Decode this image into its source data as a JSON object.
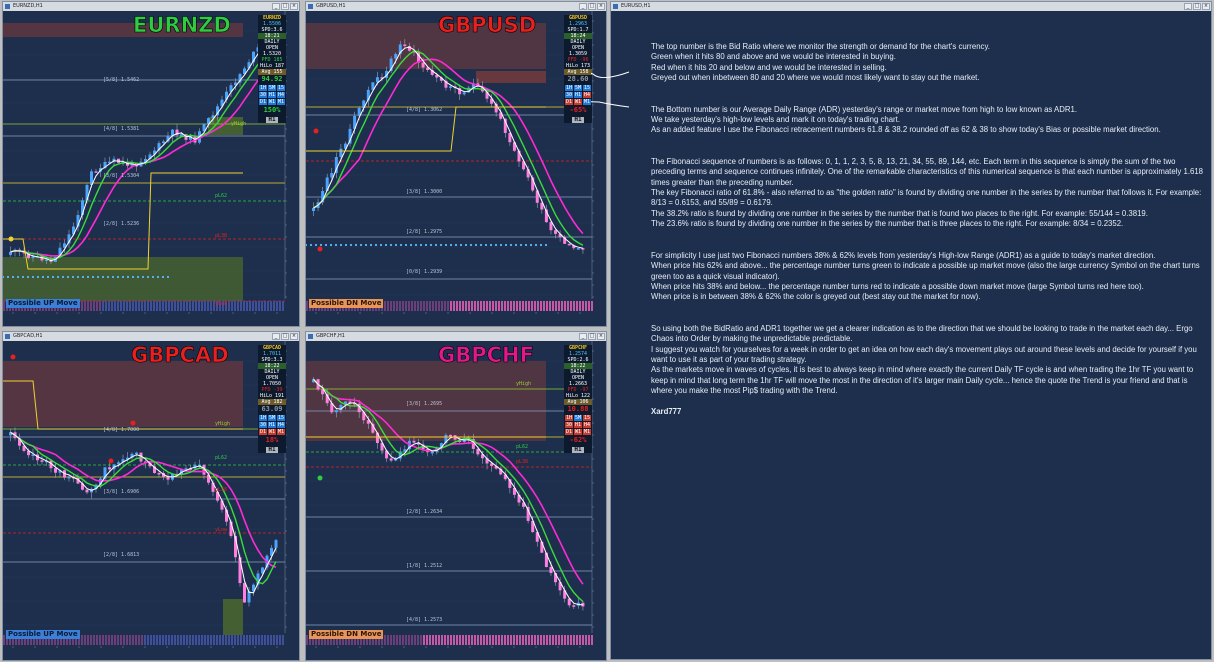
{
  "windows": [
    {
      "id": "eurnzd",
      "title": "EURNZD,H1",
      "big_symbol": "EURNZD",
      "big_symbol_color": "#2ecc40",
      "panel": {
        "symbol": "EURNZD",
        "price": "1.5506",
        "spread": "SPD:3.6",
        "time": "18:21",
        "daily_open_label": "DAILY OPEN",
        "daily_open": "1.5320",
        "pfd": "PFD 185",
        "hilo": "HiLo 187",
        "avg": "Avg 155",
        "bid_ratio": "94.92",
        "bid_ratio_color": "#2ecc40",
        "tf1": [
          "1H",
          "5M",
          "15"
        ],
        "tf2": [
          "30",
          "H1",
          "H4"
        ],
        "tf3": [
          "D1",
          "W1",
          "M1"
        ],
        "adr_pct": "150%",
        "adr_color": "#2ecc40",
        "tf_label": "H1"
      },
      "move_label": "Possible UP Move",
      "move_color": "#3a7fd8",
      "levels": [
        "[4/8] 1.5381",
        "[3/8] 1.5304",
        "[2/8] 1.5236",
        "[5/8] 1.5462",
        "yHigh",
        "pL62",
        "pL38",
        "yLow"
      ]
    },
    {
      "id": "gbpusd",
      "title": "GBPUSD,H1",
      "big_symbol": "GBPUSD",
      "big_symbol_color": "#e8201e",
      "panel": {
        "symbol": "GBPUSD",
        "price": "1.2963",
        "spread": "SPD:1.7",
        "time": "18:24",
        "daily_open_label": "DAILY OPEN",
        "daily_open": "1.3059",
        "pfd": "PFD -96",
        "hilo": "HiLo 173",
        "avg": "Avg 158",
        "bid_ratio": "28.60",
        "bid_ratio_color": "#8a93a3",
        "tf1": [
          "1H",
          "5M",
          "15"
        ],
        "tf2": [
          "30",
          "H1",
          "H4"
        ],
        "tf3": [
          "D1",
          "W1",
          "M1"
        ],
        "adr_pct": "-65%",
        "adr_color": "#e8201e",
        "tf_label": "H1"
      },
      "move_label": "Possible DN Move",
      "move_color": "#e8955a",
      "levels": [
        "[4/8] 1.3062",
        "[3/8] 1.3000",
        "[2/8] 1.2975",
        "[1/8] 1.2939",
        "[0/8] 1.2939",
        "pL62",
        "pL38"
      ]
    },
    {
      "id": "gbpcad",
      "title": "GBPCAD,H1",
      "big_symbol": "GBPCAD",
      "big_symbol_color": "#e8201e",
      "panel": {
        "symbol": "GBPCAD",
        "price": "1.7011",
        "spread": "SPD:3.3",
        "time": "18:22",
        "daily_open_label": "DAILY OPEN",
        "daily_open": "1.7050",
        "pfd": "PFD -39",
        "hilo": "HiLo 191",
        "avg": "Avg 182",
        "bid_ratio": "63.09",
        "bid_ratio_color": "#8a93a3",
        "tf1": [
          "1H",
          "5M",
          "15"
        ],
        "tf2": [
          "30",
          "H1",
          "H4"
        ],
        "tf3": [
          "D1",
          "W1",
          "M1"
        ],
        "adr_pct": "18%",
        "adr_color": "#e8201e",
        "tf_label": "H1"
      },
      "move_label": "Possible UP Move",
      "move_color": "#3a7fd8",
      "levels": [
        "[4/8] 1.7000",
        "[3/8] 1.6906",
        "[2/8] 1.6813",
        "yHigh",
        "pL62",
        "pL38",
        "yLow"
      ]
    },
    {
      "id": "gbpchf",
      "title": "GBPCHF,H1",
      "big_symbol": "GBPCHF",
      "big_symbol_color": "#e0188a",
      "panel": {
        "symbol": "GBPCHF",
        "price": "1.2574",
        "spread": "SPD:2.6",
        "time": "18:22",
        "daily_open_label": "DAILY OPEN",
        "daily_open": "1.2663",
        "pfd": "PFD -97",
        "hilo": "HiLo 122",
        "avg": "Avg 106",
        "bid_ratio": "10.88",
        "bid_ratio_color": "#e8201e",
        "tf1": [
          "1H",
          "5M",
          "15"
        ],
        "tf2": [
          "30",
          "H1",
          "H4"
        ],
        "tf3": [
          "D1",
          "W1",
          "M1"
        ],
        "adr_pct": "-62%",
        "adr_color": "#e8201e",
        "tf_label": "H1"
      },
      "move_label": "Possible DN Move",
      "move_color": "#e8955a",
      "levels": [
        "[3/8] 1.2695",
        "[2/8] 1.2634",
        "[1/8] 1.2512",
        "[4/8] 1.2573",
        "yHigh",
        "pL62",
        "pL38"
      ]
    }
  ],
  "text_window": {
    "title": "EURUSD,H1",
    "paragraphs": [
      [
        "The top number is the Bid Ratio where we monitor the strength or demand for the chart's currency.",
        "Green when it hits 80 and above and we would be interested in buying.",
        "Red when it hits 20 and below and we would be interested in selling.",
        "Greyed out when inbetween 80 and 20 where we would most likely want to stay out the market."
      ],
      [
        "The Bottom number is our Average Daily Range (ADR) yesterday's range or market move from high to low known as ADR1.",
        "We take yesterday's high-low levels and mark it on today's trading chart.",
        "As an added feature I use the Fibonacci retracement numbers 61.8 & 38.2 rounded off as 62 & 38 to show today's Bias or possible market direction."
      ],
      [
        "The Fibonacci sequence of numbers is as follows: 0, 1, 1, 2, 3, 5, 8, 13, 21, 34, 55, 89, 144, etc. Each term in this sequence is simply the sum of the two preceding terms and sequence continues infinitely. One of the remarkable characteristics of this numerical sequence is that each number is approximately 1.618 times greater than the preceding number.",
        "The key Fibonacci ratio of 61.8% - also referred to as \"the golden ratio\" is found by dividing one number in the series by the number that follows it. For example: 8/13 = 0.6153, and 55/89 = 0.6179.",
        "The 38.2% ratio is found by dividing one number in the series by the number that is found two places to the right. For example: 55/144 = 0.3819.",
        "The 23.6% ratio is found by dividing one number in the series by the number that is three places to the right. For example: 8/34 = 0.2352."
      ],
      [
        "For simplicity I use just two Fibonacci numbers 38% & 62% levels from yesterday's High-low Range (ADR1) as a guide to today's market direction.",
        "When price hits 62% and above... the percentage number turns green to indicate a possible up market move (also the large currency Symbol on the chart turns green too as a quick visual indicator).",
        "When price hits 38% and below... the percentage number turns red to indicate a possible down market move (large Symbol turns red here too).",
        "When price is in between 38% & 62% the color is greyed out (best stay out the market for now)."
      ],
      [
        "So using both the BidRatio and ADR1 together we get a clearer indication as to the direction that we should be looking to trade in the market each day... Ergo Chaos into Order by making the unpredictable predictable.",
        "I suggest you watch for yourselves for a week in order to get an idea on how each day's movement plays out around these levels and decide for yourself if you want to use it as part of your trading strategy.",
        "As the markets move in waves of cycles, it is best to always keep in mind where exactly the current Daily TF cycle is and when trading the 1hr TF you want to keep in mind that long term the 1hr TF will move the most in the direction of it's larger main Daily cycle... hence the quote the Trend is your friend and that is where you make the most Pip$ trading with the Trend."
      ]
    ],
    "signature": "Xard777"
  }
}
